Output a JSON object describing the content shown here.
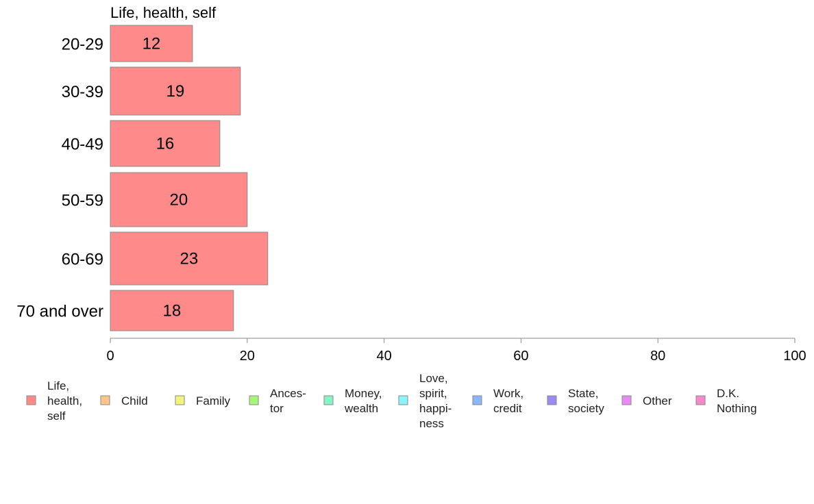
{
  "chart_data": {
    "type": "bar",
    "orientation": "horizontal",
    "title": "Life, health, self",
    "categories": [
      "20-29",
      "30-39",
      "40-49",
      "50-59",
      "60-69",
      "70 and over"
    ],
    "series": [
      {
        "name": "Life, health, self",
        "values": [
          12,
          19,
          16,
          20,
          23,
          18
        ]
      }
    ],
    "xlim": [
      0,
      100
    ],
    "xticks": [
      0,
      20,
      40,
      60,
      80,
      100
    ],
    "grid": false,
    "legend_position": "bottom",
    "legend": [
      {
        "label": "Life,\nhealth,\nself",
        "color": "#ff8a8a"
      },
      {
        "label": "Child",
        "color": "#ffc48a"
      },
      {
        "label": "Family",
        "color": "#f0f47a"
      },
      {
        "label": "Ances-\ntor",
        "color": "#a8f47a"
      },
      {
        "label": "Money,\nwealth",
        "color": "#8af4c4"
      },
      {
        "label": "Love,\nspirit,\nhappi-\nness",
        "color": "#8af4f8"
      },
      {
        "label": "Work,\ncredit",
        "color": "#8ab8f8"
      },
      {
        "label": "State,\nsociety",
        "color": "#9a8af4"
      },
      {
        "label": "Other",
        "color": "#e88af4"
      },
      {
        "label": "D.K.\nNothing",
        "color": "#f48ac8"
      }
    ],
    "bar_color": "#ff8a8a"
  }
}
